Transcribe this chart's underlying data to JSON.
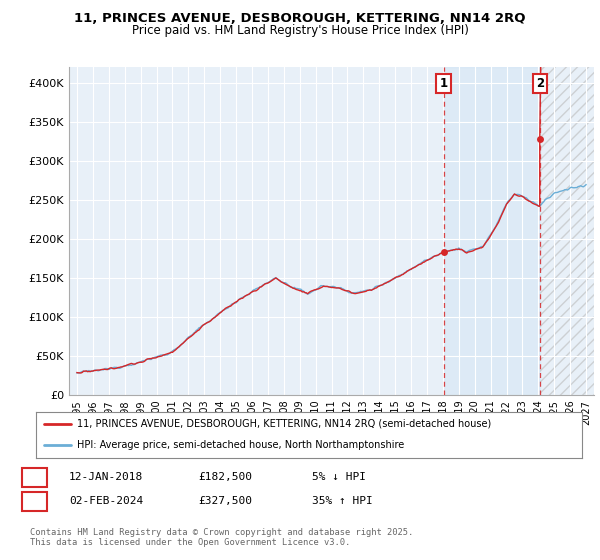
{
  "title1": "11, PRINCES AVENUE, DESBOROUGH, KETTERING, NN14 2RQ",
  "title2": "Price paid vs. HM Land Registry's House Price Index (HPI)",
  "ylabel_ticks": [
    "£0",
    "£50K",
    "£100K",
    "£150K",
    "£200K",
    "£250K",
    "£300K",
    "£350K",
    "£400K"
  ],
  "ytick_values": [
    0,
    50000,
    100000,
    150000,
    200000,
    250000,
    300000,
    350000,
    400000
  ],
  "ylim": [
    0,
    420000
  ],
  "xlim_start": 1994.5,
  "xlim_end": 2027.5,
  "hpi_color": "#6baed6",
  "price_color": "#d62728",
  "sale1_date": 2018.04,
  "sale1_price": 182500,
  "sale2_date": 2024.09,
  "sale2_price": 327500,
  "legend_line1": "11, PRINCES AVENUE, DESBOROUGH, KETTERING, NN14 2RQ (semi-detached house)",
  "legend_line2": "HPI: Average price, semi-detached house, North Northamptonshire",
  "table_row1": [
    "1",
    "12-JAN-2018",
    "£182,500",
    "5% ↓ HPI"
  ],
  "table_row2": [
    "2",
    "02-FEB-2024",
    "£327,500",
    "35% ↑ HPI"
  ],
  "footnote": "Contains HM Land Registry data © Crown copyright and database right 2025.\nThis data is licensed under the Open Government Licence v3.0.",
  "background_color": "#ffffff",
  "plot_bg_color": "#e8f0f8",
  "grid_color": "#ffffff",
  "shade_between_color": "#d0e4f5",
  "hatch_color": "#cccccc"
}
